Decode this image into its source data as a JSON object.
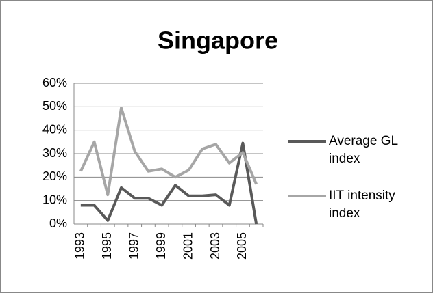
{
  "chart_data": {
    "type": "line",
    "title": "Singapore",
    "categories": [
      "1993",
      null,
      "1995",
      null,
      "1997",
      null,
      "1999",
      null,
      "2001",
      null,
      "2003",
      null,
      "2005",
      null
    ],
    "series": [
      {
        "name": "Average GL index",
        "color": "#595959",
        "values": [
          8,
          8,
          1.5,
          15.5,
          11,
          11,
          8,
          16.5,
          12,
          12,
          12.5,
          8,
          34.5,
          0
        ]
      },
      {
        "name": "IIT intensity index",
        "color": "#a6a6a6",
        "values": [
          22.5,
          35,
          12.5,
          49.5,
          31,
          22.5,
          23.5,
          20,
          23,
          32,
          34,
          26,
          30.5,
          17
        ]
      }
    ],
    "ylim": [
      0,
      60
    ],
    "yticks": [
      {
        "value": 0,
        "label": "0%"
      },
      {
        "value": 10,
        "label": "10%"
      },
      {
        "value": 20,
        "label": "20%"
      },
      {
        "value": 30,
        "label": "30%"
      },
      {
        "value": 40,
        "label": "40%"
      },
      {
        "value": 50,
        "label": "50%"
      },
      {
        "value": 60,
        "label": "60%"
      }
    ],
    "grid": true,
    "legend": "right"
  }
}
